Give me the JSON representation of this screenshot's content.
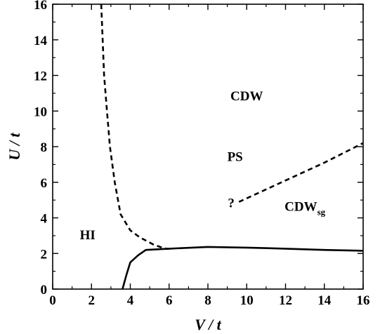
{
  "chart_data": {
    "type": "line",
    "xlabel": "V / t",
    "ylabel": "U / t",
    "xlim": [
      0,
      16
    ],
    "ylim": [
      0,
      16
    ],
    "x_ticks": [
      0,
      2,
      4,
      6,
      8,
      10,
      12,
      14,
      16
    ],
    "y_ticks": [
      0,
      2,
      4,
      6,
      8,
      10,
      12,
      14,
      16
    ],
    "grid": false,
    "legend": "none",
    "series": [
      {
        "style": "dashed",
        "color": "#000000",
        "points": [
          [
            2.5,
            16
          ],
          [
            2.65,
            12
          ],
          [
            2.8,
            10
          ],
          [
            2.95,
            8
          ],
          [
            3.2,
            6
          ],
          [
            3.5,
            4.2
          ],
          [
            4.0,
            3.3
          ],
          [
            4.5,
            2.9
          ],
          [
            5.2,
            2.5
          ],
          [
            5.7,
            2.3
          ],
          [
            6.0,
            2.25
          ]
        ]
      },
      {
        "style": "solid",
        "color": "#000000",
        "points": [
          [
            3.6,
            0
          ],
          [
            3.8,
            0.8
          ],
          [
            4.0,
            1.5
          ],
          [
            4.4,
            1.9
          ],
          [
            4.8,
            2.2
          ],
          [
            6.0,
            2.27
          ],
          [
            8.0,
            2.37
          ],
          [
            10.0,
            2.33
          ],
          [
            12.0,
            2.27
          ],
          [
            14.0,
            2.2
          ],
          [
            16.0,
            2.15
          ]
        ]
      },
      {
        "style": "dashed",
        "color": "#000000",
        "points": [
          [
            9.6,
            4.9
          ],
          [
            12.0,
            6.1
          ],
          [
            14.0,
            7.1
          ],
          [
            16.0,
            8.2
          ]
        ]
      }
    ],
    "annotations": [
      {
        "x": 10.0,
        "y": 10.6,
        "text": "CDW"
      },
      {
        "x": 1.8,
        "y": 2.8,
        "text": "HI"
      },
      {
        "x": 9.4,
        "y": 7.2,
        "text": "PS"
      },
      {
        "x": 9.2,
        "y": 4.6,
        "text": "?"
      },
      {
        "x": 13.0,
        "y": 4.4,
        "text": "CDW",
        "subscript": "sg"
      }
    ]
  }
}
